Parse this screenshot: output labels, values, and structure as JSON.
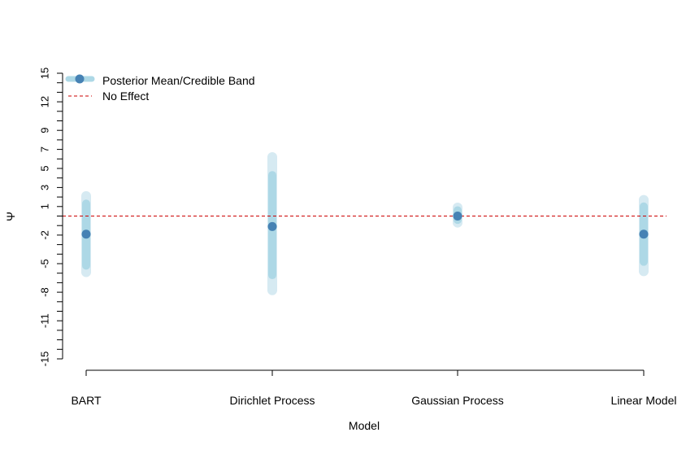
{
  "chart_data": {
    "type": "scatter",
    "xlabel": "Model",
    "ylabel": "Ψ",
    "categories": [
      "BART",
      "Dirichlet Process",
      "Gaussian Process",
      "Linear Model"
    ],
    "ylim": [
      -15,
      15
    ],
    "y_ticks": [
      -15,
      -11,
      -8,
      -5,
      -2,
      1,
      3,
      5,
      7,
      9,
      12,
      15
    ],
    "y_tick_labels": [
      "-15",
      "-11",
      "-8",
      "-5",
      "-2",
      "1",
      "3",
      "5",
      "7",
      "9",
      "12",
      "15"
    ],
    "series": [
      {
        "name": "Posterior Mean/Credible Band",
        "values": [
          -1.9,
          -1.1,
          0.0,
          -1.9
        ],
        "inner_band": [
          [
            -5.2,
            1.3
          ],
          [
            -6.2,
            4.3
          ],
          [
            -0.4,
            0.6
          ],
          [
            -4.8,
            1.0
          ]
        ],
        "outer_band": [
          [
            -5.9,
            2.1
          ],
          [
            -7.8,
            6.2
          ],
          [
            -0.7,
            0.9
          ],
          [
            -5.8,
            1.7
          ]
        ]
      }
    ],
    "reference_line": {
      "name": "No Effect",
      "y": 0
    },
    "legend": {
      "position": "top-left",
      "entries": [
        "Posterior Mean/Credible Band",
        "No Effect"
      ]
    },
    "colors": {
      "mean_point": "#4682B4",
      "inner_band": "#ADD8E6",
      "outer_band": "#D6EAF2",
      "no_effect_line": "#CC0000",
      "axis": "#000000"
    },
    "grid": false
  }
}
